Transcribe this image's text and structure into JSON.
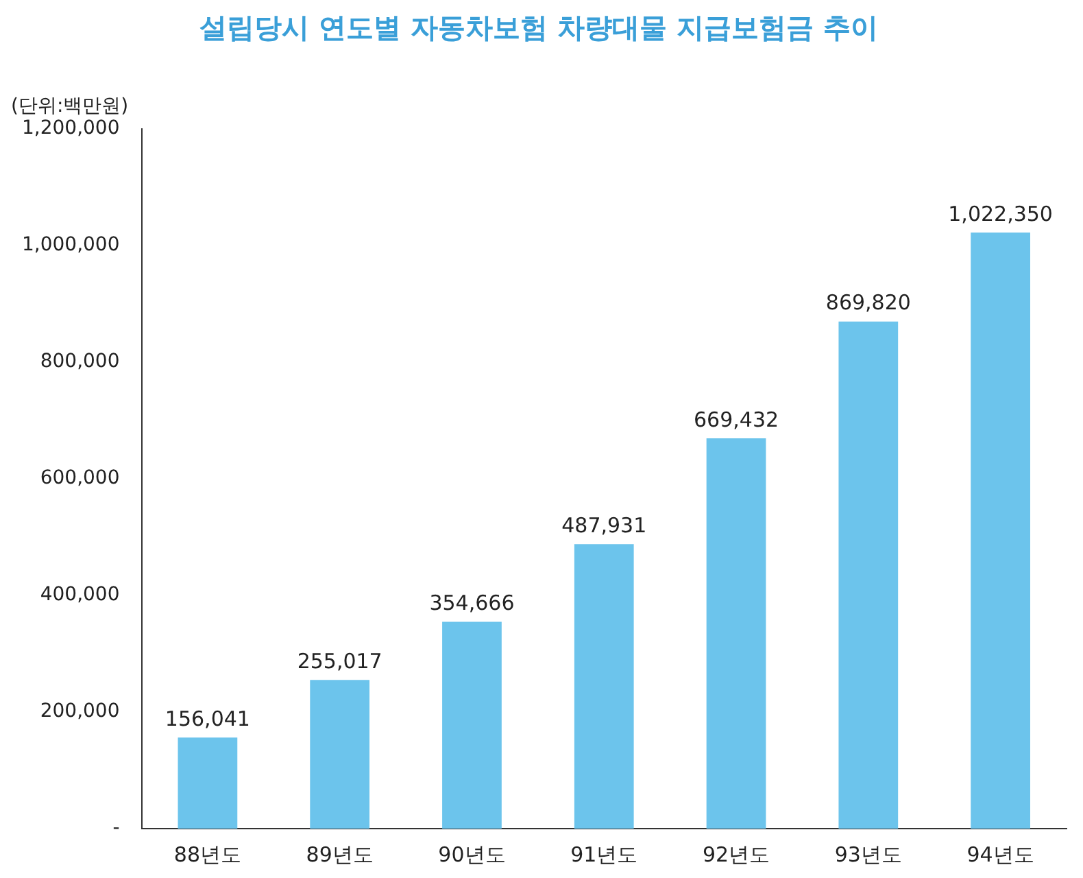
{
  "chart_data": {
    "type": "bar",
    "title": "설립당시 연도별 자동차보험 차량대물 지급보험금 추이",
    "ylabel": "(단위:백만원)",
    "categories": [
      "88년도",
      "89년도",
      "90년도",
      "91년도",
      "92년도",
      "93년도",
      "94년도"
    ],
    "values": [
      156041,
      255017,
      354666,
      487931,
      669432,
      869820,
      1022350
    ],
    "value_labels": [
      "156,041",
      "255,017",
      "354,666",
      "487,931",
      "669,432",
      "869,820",
      "1,022,350"
    ],
    "color": "#6cc4ec",
    "ylim": [
      0,
      1200000
    ],
    "yticks": [
      {
        "value": 0,
        "label": "-"
      },
      {
        "value": 200000,
        "label": "200,000"
      },
      {
        "value": 400000,
        "label": "400,000"
      },
      {
        "value": 600000,
        "label": "600,000"
      },
      {
        "value": 800000,
        "label": "800,000"
      },
      {
        "value": 1000000,
        "label": "1,000,000"
      },
      {
        "value": 1200000,
        "label": "1,200,000"
      }
    ],
    "grid": false,
    "legend": false
  }
}
